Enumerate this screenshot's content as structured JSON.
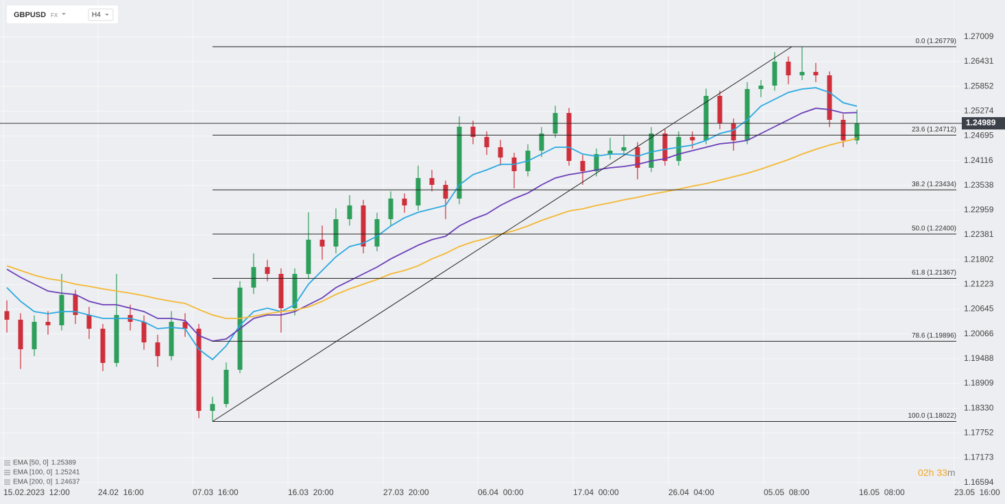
{
  "ui": {
    "symbol": "GBPUSD",
    "market": "FX",
    "interval": "H4",
    "countdown_hours": "02h",
    "countdown_minutes": "33",
    "countdown_unit": "m"
  },
  "chart_data": {
    "type": "candlestick",
    "up_color": "#2e9e5b",
    "down_color": "#cf2f3b",
    "candles": [
      [
        1.206,
        1.2085,
        1.201,
        1.204
      ],
      [
        1.204,
        1.2055,
        1.1925,
        1.1971
      ],
      [
        1.1971,
        1.205,
        1.1955,
        1.2035
      ],
      [
        1.2035,
        1.206,
        1.2005,
        1.2027
      ],
      [
        1.2027,
        1.2147,
        1.2015,
        1.2098
      ],
      [
        1.2098,
        1.211,
        1.203,
        1.2051
      ],
      [
        1.2051,
        1.207,
        1.1995,
        1.2019
      ],
      [
        1.2019,
        1.203,
        1.192,
        1.1939
      ],
      [
        1.1939,
        1.2147,
        1.193,
        1.2051
      ],
      [
        1.2051,
        1.2075,
        1.2015,
        1.2035
      ],
      [
        1.2035,
        1.205,
        1.197,
        1.1987
      ],
      [
        1.1987,
        1.2005,
        1.193,
        1.1955
      ],
      [
        1.1955,
        1.206,
        1.1945,
        1.2035
      ],
      [
        1.2035,
        1.2055,
        1.2,
        1.2019
      ],
      [
        1.2019,
        1.203,
        1.181,
        1.1827
      ],
      [
        1.1827,
        1.186,
        1.1803,
        1.1843
      ],
      [
        1.1843,
        1.194,
        1.1835,
        1.1923
      ],
      [
        1.1923,
        1.213,
        1.1915,
        1.2115
      ],
      [
        1.2115,
        1.2195,
        1.21,
        1.2163
      ],
      [
        1.2163,
        1.218,
        1.213,
        1.2147
      ],
      [
        1.2147,
        1.216,
        1.201,
        1.2067
      ],
      [
        1.2067,
        1.216,
        1.205,
        1.2147
      ],
      [
        1.2147,
        1.2291,
        1.2135,
        1.2227
      ],
      [
        1.2227,
        1.226,
        1.218,
        1.2211
      ],
      [
        1.2211,
        1.23,
        1.2195,
        1.2275
      ],
      [
        1.2275,
        1.2331,
        1.226,
        1.2307
      ],
      [
        1.2307,
        1.232,
        1.2195,
        1.2211
      ],
      [
        1.2211,
        1.229,
        1.22,
        1.2275
      ],
      [
        1.2275,
        1.234,
        1.226,
        1.2323
      ],
      [
        1.2323,
        1.2335,
        1.229,
        1.2307
      ],
      [
        1.2307,
        1.24,
        1.2295,
        1.2371
      ],
      [
        1.2371,
        1.239,
        1.234,
        1.2355
      ],
      [
        1.2355,
        1.2365,
        1.2275,
        1.2323
      ],
      [
        1.2323,
        1.2515,
        1.231,
        1.2491
      ],
      [
        1.2491,
        1.2505,
        1.245,
        1.2467
      ],
      [
        1.2467,
        1.248,
        1.2425,
        1.2443
      ],
      [
        1.2443,
        1.246,
        1.24,
        1.2419
      ],
      [
        1.2419,
        1.243,
        1.2347,
        1.2387
      ],
      [
        1.2387,
        1.245,
        1.2375,
        1.2435
      ],
      [
        1.2435,
        1.249,
        1.242,
        1.2475
      ],
      [
        1.2475,
        1.254,
        1.2465,
        1.2523
      ],
      [
        1.2523,
        1.2535,
        1.24,
        1.2411
      ],
      [
        1.2411,
        1.2425,
        1.2355,
        1.2387
      ],
      [
        1.2387,
        1.244,
        1.2375,
        1.2427
      ],
      [
        1.2427,
        1.2465,
        1.2415,
        1.2435
      ],
      [
        1.2435,
        1.247,
        1.2425,
        1.2443
      ],
      [
        1.2443,
        1.2455,
        1.2368,
        1.2395
      ],
      [
        1.2395,
        1.249,
        1.2385,
        1.2475
      ],
      [
        1.2475,
        1.2485,
        1.24,
        1.2411
      ],
      [
        1.2411,
        1.248,
        1.24,
        1.2467
      ],
      [
        1.2467,
        1.248,
        1.244,
        1.2459
      ],
      [
        1.2459,
        1.258,
        1.245,
        1.2563
      ],
      [
        1.2563,
        1.2575,
        1.2485,
        1.2499
      ],
      [
        1.2499,
        1.251,
        1.2435,
        1.2459
      ],
      [
        1.2459,
        1.2595,
        1.245,
        1.2579
      ],
      [
        1.2579,
        1.26,
        1.256,
        1.2587
      ],
      [
        1.2587,
        1.2665,
        1.2575,
        1.2643
      ],
      [
        1.2643,
        1.2655,
        1.259,
        1.2611
      ],
      [
        1.2611,
        1.2678,
        1.26,
        1.2619
      ],
      [
        1.2619,
        1.264,
        1.2595,
        1.2611
      ],
      [
        1.2611,
        1.262,
        1.249,
        1.2507
      ],
      [
        1.2507,
        1.252,
        1.2443,
        1.2459
      ],
      [
        1.2459,
        1.2531,
        1.245,
        1.24989
      ]
    ],
    "series": [
      {
        "name": "EMA [50, 0]",
        "color": "#29a8e0",
        "values": [
          1.2115,
          1.2083,
          1.2059,
          1.2054,
          1.2059,
          1.2059,
          1.2051,
          1.2043,
          1.2043,
          1.2043,
          1.2035,
          1.2019,
          1.2022,
          1.2019,
          1.1971,
          1.1947,
          1.1979,
          1.2027,
          1.2059,
          1.2067,
          1.2059,
          1.2075,
          1.2123,
          1.2155,
          1.2187,
          1.2211,
          1.2219,
          1.2235,
          1.2259,
          1.2278,
          1.2291,
          1.2299,
          1.2307,
          1.2355,
          1.2379,
          1.239,
          1.2403,
          1.2403,
          1.2411,
          1.2427,
          1.2443,
          1.2443,
          1.2427,
          1.2422,
          1.2427,
          1.2427,
          1.2422,
          1.2432,
          1.2438,
          1.2443,
          1.2448,
          1.2459,
          1.2475,
          1.2483,
          1.2507,
          1.2539,
          1.2555,
          1.2571,
          1.2579,
          1.2582,
          1.2571,
          1.2547,
          1.25389
        ]
      },
      {
        "name": "EMA [100, 0]",
        "color": "#6a3db8",
        "values": [
          1.2158,
          1.2139,
          1.2123,
          1.2107,
          1.2102,
          1.2099,
          1.2083,
          1.2075,
          1.2075,
          1.2067,
          1.2059,
          1.2043,
          1.2043,
          1.2038,
          1.2003,
          1.199,
          1.1995,
          1.2019,
          1.2043,
          1.2051,
          1.2051,
          1.2059,
          1.2075,
          1.2091,
          1.2115,
          1.2131,
          1.2147,
          1.2163,
          1.2182,
          1.2198,
          1.2214,
          1.2227,
          1.2235,
          1.2259,
          1.2275,
          1.2287,
          1.2307,
          1.2323,
          1.2336,
          1.2355,
          1.2371,
          1.2379,
          1.2384,
          1.239,
          1.2395,
          1.2398,
          1.2403,
          1.2411,
          1.2416,
          1.2427,
          1.2435,
          1.2443,
          1.2451,
          1.2454,
          1.2459,
          1.2475,
          1.2491,
          1.2507,
          1.2523,
          1.2534,
          1.2531,
          1.2523,
          1.25241
        ]
      },
      {
        "name": "EMA [200, 0]",
        "color": "#f5b731",
        "values": [
          1.2166,
          1.2155,
          1.2144,
          1.2136,
          1.2131,
          1.2123,
          1.2118,
          1.2112,
          1.2107,
          1.2102,
          1.2096,
          1.2089,
          1.2083,
          1.2078,
          1.2064,
          1.2051,
          1.2043,
          1.2043,
          1.2048,
          1.2054,
          1.2059,
          1.2062,
          1.207,
          1.2083,
          1.2099,
          1.2112,
          1.2123,
          1.2134,
          1.2147,
          1.2155,
          1.2166,
          1.2182,
          1.2195,
          1.2211,
          1.2222,
          1.223,
          1.224,
          1.2248,
          1.2259,
          1.2272,
          1.2283,
          1.2294,
          1.2299,
          1.2307,
          1.2313,
          1.232,
          1.2326,
          1.2333,
          1.2339,
          1.2345,
          1.2352,
          1.2358,
          1.2366,
          1.2374,
          1.2382,
          1.2392,
          1.2403,
          1.2414,
          1.2427,
          1.2438,
          1.2448,
          1.2456,
          1.24637
        ]
      }
    ],
    "fib_levels": [
      {
        "value": 1.26779,
        "label": "0.0 (1.26779)"
      },
      {
        "value": 1.24712,
        "label": "23.6 (1.24712)"
      },
      {
        "value": 1.23434,
        "label": "38.2 (1.23434)"
      },
      {
        "value": 1.224,
        "label": "50.0 (1.22400)"
      },
      {
        "value": 1.21367,
        "label": "61.8 (1.21367)"
      },
      {
        "value": 1.19896,
        "label": "78.6 (1.19896)"
      },
      {
        "value": 1.18022,
        "label": "100.0 (1.18022)"
      }
    ],
    "xlim": [
      -0.5,
      69.5
    ],
    "xticks": [
      {
        "value": -0.25,
        "label": "15.02.2023  12:00"
      },
      {
        "value": 6.65,
        "label": "24.02  16:00"
      },
      {
        "value": 13.55,
        "label": "07.03  16:00"
      },
      {
        "value": 20.5,
        "label": "16.03  20:00"
      },
      {
        "value": 27.45,
        "label": "27.03  20:00"
      },
      {
        "value": 34.35,
        "label": "06.04  00:00"
      },
      {
        "value": 41.3,
        "label": "17.04  00:00"
      },
      {
        "value": 48.25,
        "label": "26.04  04:00"
      },
      {
        "value": 55.2,
        "label": "05.05  08:00"
      },
      {
        "value": 62.15,
        "label": "16.05  08:00"
      },
      {
        "value": 69.1,
        "label": "23.05  16:00"
      }
    ],
    "ylim": [
      1.1651,
      1.2787
    ],
    "yticks": [
      1.27009,
      1.26431,
      1.25852,
      1.25274,
      1.24695,
      1.24116,
      1.23538,
      1.22959,
      1.22381,
      1.21802,
      1.21223,
      1.20645,
      1.20066,
      1.19488,
      1.18909,
      {
        "value": 1.1833,
        "label": "1.18330"
      },
      1.17752,
      1.17173,
      1.16594
    ],
    "grid": true
  }
}
